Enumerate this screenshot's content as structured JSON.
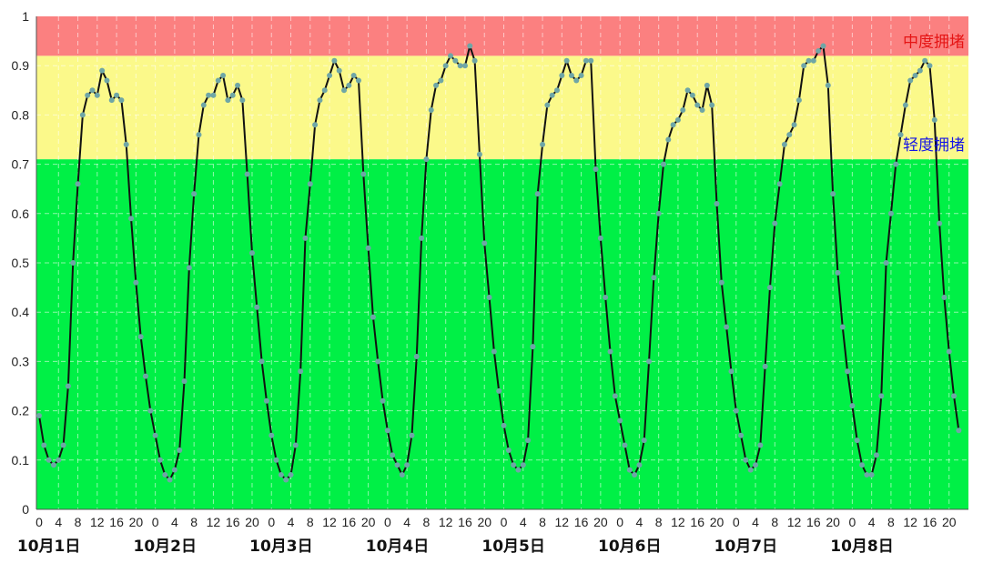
{
  "chart_data": {
    "type": "line",
    "ylim": [
      0,
      1
    ],
    "yticks": [
      "0",
      "0.1",
      "0.2",
      "0.3",
      "0.4",
      "0.5",
      "0.6",
      "0.7",
      "0.8",
      "0.9",
      "1"
    ],
    "hour_ticks": [
      "0",
      "4",
      "8",
      "12",
      "16",
      "20"
    ],
    "days": [
      "10月1日",
      "10月2日",
      "10月3日",
      "10月4日",
      "10月5日",
      "10月6日",
      "10月7日",
      "10月8日"
    ],
    "x_unit_hours": 1,
    "x_range_hours": [
      0,
      192
    ],
    "grid": true,
    "bands": [
      {
        "from": 0.71,
        "to": 0.92,
        "color": "#fbf98a",
        "label": "轻度拥堵",
        "label_color": "#1414e6"
      },
      {
        "from": 0.92,
        "to": 1.0,
        "color": "#fb8080",
        "label": "中度拥堵",
        "label_color": "#e51414"
      },
      {
        "from": 0.0,
        "to": 0.71,
        "color": "#00f046",
        "label": "",
        "label_color": ""
      }
    ],
    "line_color": "#111111",
    "marker_color": "#6fa6a6",
    "series": [
      {
        "values": [
          0.19,
          0.13,
          0.1,
          0.09,
          0.1,
          0.13,
          0.25,
          0.5,
          0.66,
          0.8,
          0.84,
          0.85,
          0.84,
          0.89,
          0.87,
          0.83,
          0.84,
          0.83,
          0.74,
          0.59,
          0.46,
          0.35,
          0.27,
          0.2,
          0.15,
          0.1,
          0.07,
          0.06,
          0.08,
          0.12,
          0.26,
          0.49,
          0.64,
          0.76,
          0.82,
          0.84,
          0.84,
          0.87,
          0.88,
          0.83,
          0.84,
          0.86,
          0.83,
          0.68,
          0.52,
          0.41,
          0.3,
          0.22,
          0.15,
          0.1,
          0.07,
          0.06,
          0.07,
          0.13,
          0.28,
          0.55,
          0.66,
          0.78,
          0.83,
          0.85,
          0.88,
          0.91,
          0.89,
          0.85,
          0.86,
          0.88,
          0.87,
          0.68,
          0.53,
          0.39,
          0.3,
          0.22,
          0.16,
          0.11,
          0.09,
          0.07,
          0.09,
          0.15,
          0.31,
          0.55,
          0.71,
          0.81,
          0.86,
          0.87,
          0.9,
          0.92,
          0.91,
          0.9,
          0.9,
          0.94,
          0.91,
          0.72,
          0.54,
          0.43,
          0.32,
          0.24,
          0.17,
          0.12,
          0.09,
          0.08,
          0.09,
          0.14,
          0.33,
          0.64,
          0.74,
          0.82,
          0.84,
          0.85,
          0.88,
          0.91,
          0.88,
          0.87,
          0.88,
          0.91,
          0.91,
          0.69,
          0.55,
          0.43,
          0.32,
          0.23,
          0.18,
          0.13,
          0.08,
          0.07,
          0.09,
          0.14,
          0.3,
          0.47,
          0.6,
          0.7,
          0.75,
          0.78,
          0.79,
          0.81,
          0.85,
          0.84,
          0.82,
          0.81,
          0.86,
          0.82,
          0.62,
          0.46,
          0.37,
          0.28,
          0.2,
          0.15,
          0.1,
          0.08,
          0.09,
          0.13,
          0.29,
          0.45,
          0.58,
          0.66,
          0.74,
          0.76,
          0.78,
          0.83,
          0.9,
          0.91,
          0.91,
          0.93,
          0.94,
          0.86,
          0.64,
          0.48,
          0.37,
          0.28,
          0.21,
          0.14,
          0.09,
          0.07,
          0.07,
          0.11,
          0.23,
          0.5,
          0.6,
          0.7,
          0.76,
          0.82,
          0.87,
          0.88,
          0.89,
          0.91,
          0.9,
          0.79,
          0.58,
          0.43,
          0.32,
          0.23,
          0.16
        ]
      }
    ]
  }
}
